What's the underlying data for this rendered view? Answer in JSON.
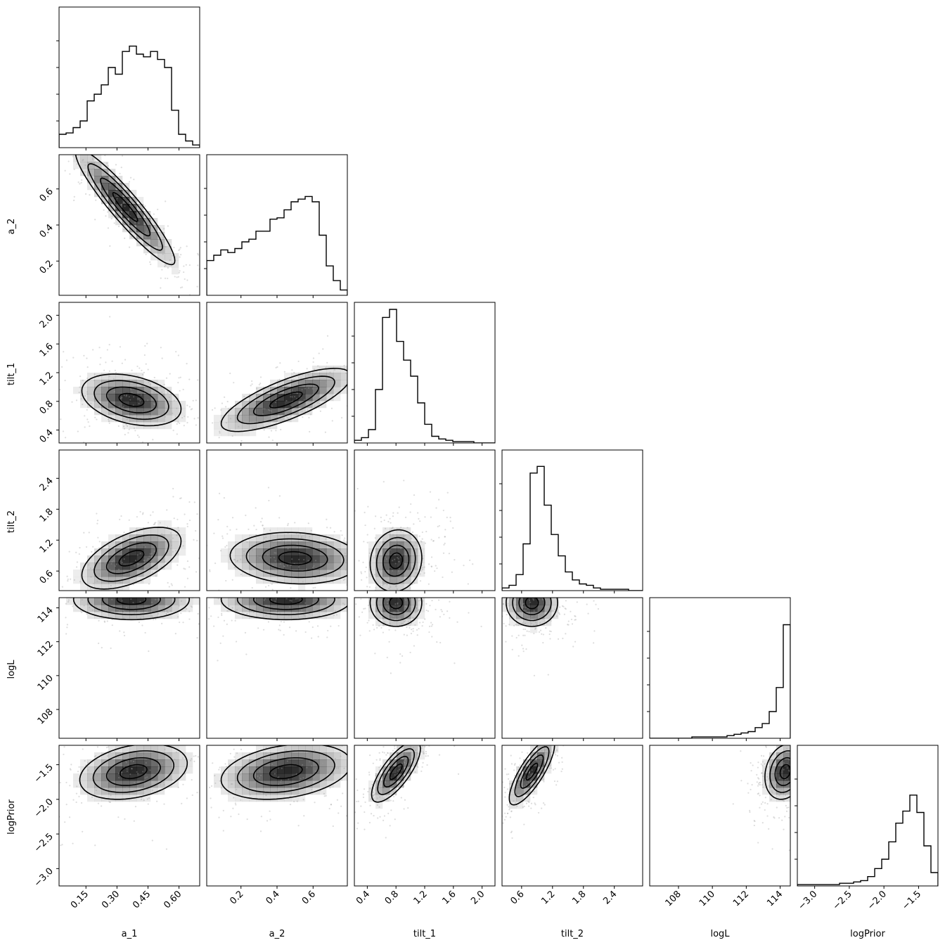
{
  "chart_data": {
    "type": "corner",
    "parameters": [
      "a_1",
      "a_2",
      "tilt_1",
      "tilt_2",
      "logL",
      "logPrior"
    ],
    "axis_labels": [
      "a_1",
      "a_2",
      "tilt_1",
      "tilt_2",
      "logL",
      "logPrior"
    ],
    "ranges": [
      [
        0.02,
        0.7
      ],
      [
        0.01,
        0.79
      ],
      [
        0.22,
        2.18
      ],
      [
        0.22,
        2.95
      ],
      [
        106.3,
        114.6
      ],
      [
        -3.25,
        -1.22
      ]
    ],
    "ticks": [
      {
        "values": [
          0.15,
          0.3,
          0.45,
          0.6
        ],
        "labels": [
          "0.15",
          "0.30",
          "0.45",
          "0.60"
        ]
      },
      {
        "values": [
          0.2,
          0.4,
          0.6
        ],
        "labels": [
          "0.2",
          "0.4",
          "0.6"
        ]
      },
      {
        "values": [
          0.4,
          0.8,
          1.2,
          1.6,
          2.0
        ],
        "labels": [
          "0.4",
          "0.8",
          "1.2",
          "1.6",
          "2.0"
        ]
      },
      {
        "values": [
          0.6,
          1.2,
          1.8,
          2.4
        ],
        "labels": [
          "0.6",
          "1.2",
          "1.8",
          "2.4"
        ]
      },
      {
        "values": [
          108,
          110,
          112,
          114
        ],
        "labels": [
          "108",
          "110",
          "112",
          "114"
        ]
      },
      {
        "values": [
          -3.0,
          -2.5,
          -2.0,
          -1.5
        ],
        "labels": [
          "−3.0",
          "−2.5",
          "−2.0",
          "−1.5"
        ]
      }
    ],
    "histograms": [
      [
        0.1,
        0.11,
        0.15,
        0.2,
        0.35,
        0.4,
        0.47,
        0.6,
        0.55,
        0.72,
        0.76,
        0.7,
        0.68,
        0.72,
        0.66,
        0.6,
        0.28,
        0.1,
        0.05,
        0.02
      ],
      [
        0.26,
        0.3,
        0.34,
        0.32,
        0.35,
        0.4,
        0.42,
        0.48,
        0.48,
        0.57,
        0.58,
        0.64,
        0.7,
        0.72,
        0.74,
        0.7,
        0.45,
        0.22,
        0.11,
        0.04
      ],
      [
        0.02,
        0.04,
        0.1,
        0.4,
        0.94,
        1.0,
        0.76,
        0.62,
        0.5,
        0.3,
        0.14,
        0.05,
        0.03,
        0.02,
        0.01,
        0.01,
        0.01,
        0.0,
        0.0,
        0.0
      ],
      [
        0.02,
        0.04,
        0.12,
        0.35,
        0.88,
        0.93,
        0.64,
        0.42,
        0.26,
        0.14,
        0.08,
        0.05,
        0.04,
        0.02,
        0.01,
        0.01,
        0.01,
        0.01,
        0.0,
        0.0
      ],
      [
        0.0,
        0.0,
        0.0,
        0.0,
        0.0,
        0.0,
        0.01,
        0.01,
        0.01,
        0.01,
        0.01,
        0.02,
        0.03,
        0.04,
        0.05,
        0.08,
        0.11,
        0.2,
        0.38,
        0.85
      ],
      [
        0.01,
        0.01,
        0.01,
        0.01,
        0.01,
        0.01,
        0.02,
        0.02,
        0.03,
        0.04,
        0.07,
        0.13,
        0.2,
        0.33,
        0.47,
        0.56,
        0.68,
        0.55,
        0.3,
        0.1
      ]
    ],
    "pairs": [
      {
        "row": 1,
        "col": 0,
        "center": [
          0.34,
          0.5
        ],
        "sigma": [
          0.12,
          0.16
        ],
        "rho": -0.93
      },
      {
        "row": 2,
        "col": 0,
        "center": [
          0.37,
          0.82
        ],
        "sigma": [
          0.12,
          0.18
        ],
        "rho": -0.35
      },
      {
        "row": 2,
        "col": 1,
        "center": [
          0.45,
          0.82
        ],
        "sigma": [
          0.18,
          0.22
        ],
        "rho": 0.75
      },
      {
        "row": 3,
        "col": 0,
        "center": [
          0.37,
          0.85
        ],
        "sigma": [
          0.12,
          0.3
        ],
        "rho": 0.55
      },
      {
        "row": 3,
        "col": 1,
        "center": [
          0.5,
          0.85
        ],
        "sigma": [
          0.18,
          0.25
        ],
        "rho": -0.1
      },
      {
        "row": 3,
        "col": 2,
        "center": [
          0.8,
          0.8
        ],
        "sigma": [
          0.18,
          0.3
        ],
        "rho": 0.1
      },
      {
        "row": 4,
        "col": 0,
        "center": [
          0.37,
          114.5
        ],
        "sigma": [
          0.14,
          0.6
        ],
        "rho": 0.0
      },
      {
        "row": 4,
        "col": 1,
        "center": [
          0.45,
          114.5
        ],
        "sigma": [
          0.18,
          0.6
        ],
        "rho": 0.0
      },
      {
        "row": 4,
        "col": 2,
        "center": [
          0.8,
          114.3
        ],
        "sigma": [
          0.18,
          0.7
        ],
        "rho": 0.0
      },
      {
        "row": 4,
        "col": 3,
        "center": [
          0.8,
          114.3
        ],
        "sigma": [
          0.25,
          0.7
        ],
        "rho": 0.0
      },
      {
        "row": 5,
        "col": 0,
        "center": [
          0.38,
          -1.6
        ],
        "sigma": [
          0.13,
          0.2
        ],
        "rho": 0.3
      },
      {
        "row": 5,
        "col": 1,
        "center": [
          0.45,
          -1.6
        ],
        "sigma": [
          0.18,
          0.2
        ],
        "rho": 0.3
      },
      {
        "row": 5,
        "col": 2,
        "center": [
          0.8,
          -1.6
        ],
        "sigma": [
          0.17,
          0.22
        ],
        "rho": 0.75
      },
      {
        "row": 5,
        "col": 3,
        "center": [
          0.8,
          -1.6
        ],
        "sigma": [
          0.22,
          0.24
        ],
        "rho": 0.8
      },
      {
        "row": 5,
        "col": 4,
        "center": [
          114.3,
          -1.6
        ],
        "sigma": [
          0.6,
          0.2
        ],
        "rho": 0.2
      }
    ],
    "contour_levels_sigma": [
      0.5,
      1.0,
      1.5,
      2.0
    ],
    "grid": false,
    "legend": "none",
    "colors": {
      "line": "#000000",
      "points": "#9e9e9e",
      "density": "#000000"
    }
  }
}
